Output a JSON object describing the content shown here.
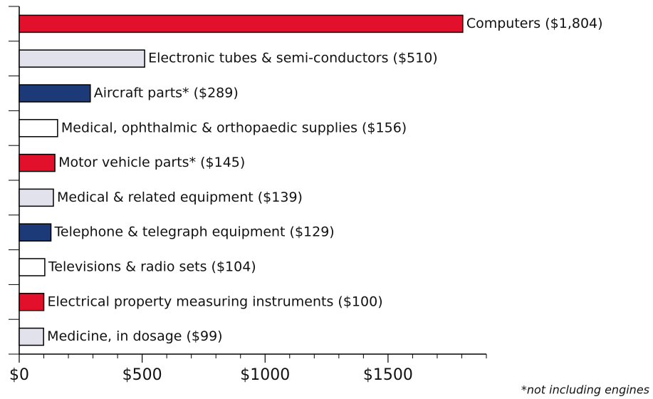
{
  "chart_data": {
    "type": "bar",
    "orientation": "horizontal",
    "categories": [
      "Computers ($1,804)",
      "Electronic tubes & semi-conductors ($510)",
      "Aircraft parts* ($289)",
      "Medical, ophthalmic & orthopaedic supplies ($156)",
      "Motor vehicle parts* ($145)",
      "Medical & related equipment ($139)",
      "Telephone & telegraph equipment ($129)",
      "Televisions & radio sets ($104)",
      "Electrical property measuring instruments ($100)",
      "Medicine, in dosage ($99)"
    ],
    "values": [
      1804,
      510,
      289,
      156,
      145,
      139,
      129,
      104,
      100,
      99
    ],
    "colors": [
      "#e3102c",
      "#e2e2ec",
      "#1c3a78",
      "#ffffff",
      "#e3102c",
      "#e2e2ec",
      "#1c3a78",
      "#ffffff",
      "#e3102c",
      "#e2e2ec"
    ],
    "xlim": [
      0,
      1900
    ],
    "xticks": [
      {
        "value": 0,
        "label": "$0"
      },
      {
        "value": 500,
        "label": "$500"
      },
      {
        "value": 1000,
        "label": "$1000"
      },
      {
        "value": 1500,
        "label": "$1500"
      }
    ],
    "xminorticks": [
      100,
      200,
      300,
      400,
      600,
      700,
      800,
      900,
      1100,
      1200,
      1300,
      1400,
      1600,
      1700,
      1800,
      1900
    ],
    "footnote": "*not including engines"
  }
}
